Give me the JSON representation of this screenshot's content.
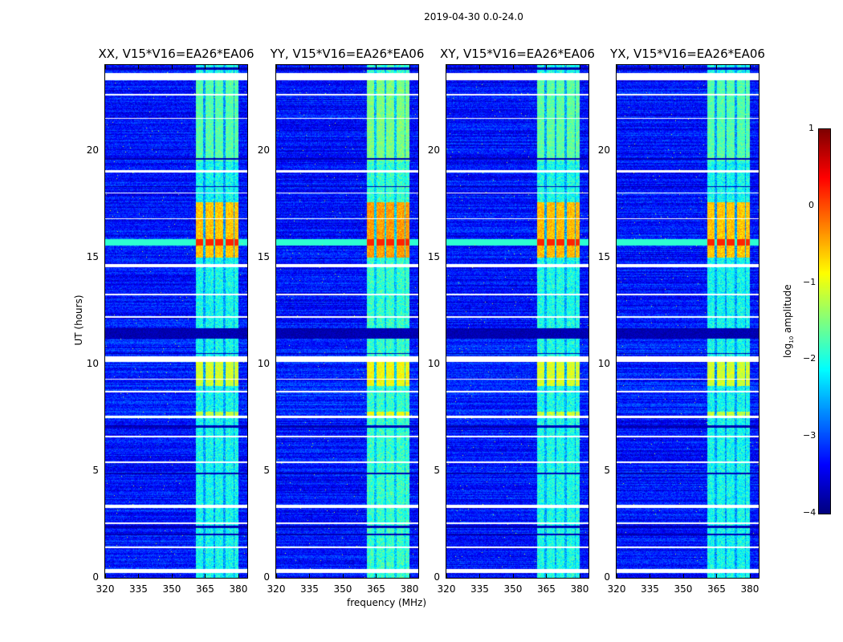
{
  "chart_data": {
    "type": "heatmap",
    "title": "2019-04-30 0.0-24.0",
    "xlabel": "frequency (MHz)",
    "ylabel": "UT (hours)",
    "xlim": [
      320,
      384
    ],
    "ylim": [
      0,
      24
    ],
    "xticks": [
      320,
      335,
      350,
      365,
      380
    ],
    "yticks": [
      0,
      5,
      10,
      15,
      20
    ],
    "panels": [
      {
        "title": "XX, V15*V16=EA26*EA06",
        "gain": 0
      },
      {
        "title": "YY, V15*V16=EA26*EA06",
        "gain": 0.2
      },
      {
        "title": "XY, V15*V16=EA26*EA06",
        "gain": 0.05
      },
      {
        "title": "YX, V15*V16=EA26*EA06",
        "gain": 0.0
      }
    ],
    "colorbar": {
      "label_prefix": "log",
      "label_sub": "10",
      "label_suffix": " amplitude",
      "range": [
        -4,
        1
      ],
      "ticks": [
        "1",
        "0",
        "−1",
        "−2",
        "−3",
        "−4"
      ],
      "colormap": "jet"
    },
    "structure": {
      "background_log_amp": -3.2,
      "band_mhz": [
        360.5,
        380
      ],
      "band_channels_mhz": [
        [
          360.5,
          364
        ],
        [
          365,
          368.5
        ],
        [
          369.5,
          373
        ],
        [
          374,
          377.5
        ],
        [
          378,
          380
        ]
      ],
      "bright_intervals_hours": [
        {
          "range": [
            15.0,
            17.6
          ],
          "log_amp": -0.6
        },
        {
          "range": [
            15.55,
            15.85
          ],
          "log_amp": 0.2,
          "full_band": true
        },
        {
          "range": [
            9.0,
            10.4
          ],
          "log_amp": -1.1
        },
        {
          "range": [
            7.5,
            7.8
          ],
          "log_amp": -1.2
        },
        {
          "range": [
            19.5,
            23.5
          ],
          "log_amp": -1.7
        }
      ],
      "flagged_hours": [
        [
          23.3,
          23.65
        ],
        [
          10.12,
          10.4
        ],
        [
          7.5,
          7.62
        ],
        [
          0.26,
          0.45
        ],
        [
          3.28,
          3.42
        ],
        [
          14.55,
          14.7
        ],
        [
          19.0,
          19.08
        ],
        [
          13.25,
          13.32
        ],
        [
          21.5,
          21.55
        ],
        [
          22.6,
          22.65
        ],
        [
          8.7,
          8.78
        ],
        [
          2.55,
          2.62
        ],
        [
          1.4,
          1.47
        ],
        [
          12.2,
          12.25
        ],
        [
          18.0,
          18.05
        ],
        [
          16.8,
          16.85
        ],
        [
          5.4,
          5.46
        ],
        [
          6.6,
          6.65
        ],
        [
          9.3,
          9.35
        ]
      ],
      "dark_hours": [
        [
          11.2,
          11.7
        ],
        [
          4.85,
          4.95
        ],
        [
          2.35,
          2.45
        ],
        [
          2.0,
          2.08
        ],
        [
          7.05,
          7.15
        ],
        [
          10.5,
          10.55
        ],
        [
          19.6,
          19.65
        ],
        [
          23.8,
          23.9
        ],
        [
          18.3,
          18.35
        ]
      ]
    }
  }
}
